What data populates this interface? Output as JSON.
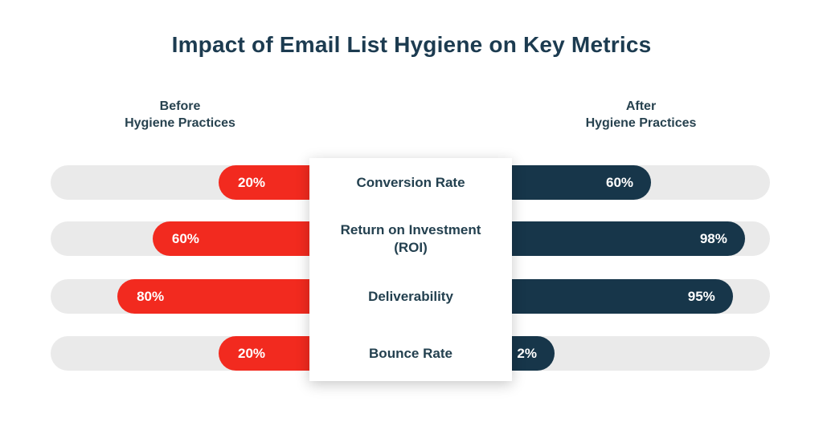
{
  "title": "Impact of Email List Hygiene on Key Metrics",
  "column_headers": {
    "before": {
      "line1": "Before",
      "line2": "Hygiene Practices"
    },
    "after": {
      "line1": "After",
      "line2": "Hygiene Practices"
    }
  },
  "colors": {
    "title_text": "#1c3b50",
    "before_bar": "#f22a1f",
    "after_bar": "#17364a",
    "track": "#eaeaea",
    "bar_value_text": "#ffffff",
    "panel_background": "#ffffff"
  },
  "chart_data": {
    "type": "bar",
    "variant": "diverging-horizontal",
    "title": "Impact of Email List Hygiene on Key Metrics",
    "categories": [
      "Conversion Rate",
      "Return on Investment (ROI)",
      "Deliverability",
      "Bounce Rate"
    ],
    "series": [
      {
        "name": "Before Hygiene Practices",
        "direction": "left",
        "color": "#f22a1f",
        "values": [
          20,
          60,
          80,
          20
        ]
      },
      {
        "name": "After Hygiene Practices",
        "direction": "right",
        "color": "#17364a",
        "values": [
          60,
          98,
          95,
          2
        ]
      }
    ],
    "value_suffix": "%",
    "axis_range": [
      0,
      100
    ],
    "grid": false,
    "legend_position": "top-as-column-headers",
    "rows": [
      {
        "label": "Conversion Rate",
        "before_label": "20%",
        "after_label": "60%",
        "before_drawn_pct": 35.1,
        "after_drawn_pct": 53.9
      },
      {
        "label": "Return on Investment (ROI)",
        "before_label": "60%",
        "after_label": "98%",
        "before_drawn_pct": 60.6,
        "after_drawn_pct": 90.3
      },
      {
        "label": "Deliverability",
        "before_label": "80%",
        "after_label": "95%",
        "before_drawn_pct": 74.2,
        "after_drawn_pct": 85.6
      },
      {
        "label": "Bounce Rate",
        "before_label": "20%",
        "after_label": "2%",
        "before_drawn_pct": 35.1,
        "after_drawn_pct": 16.5
      }
    ]
  }
}
